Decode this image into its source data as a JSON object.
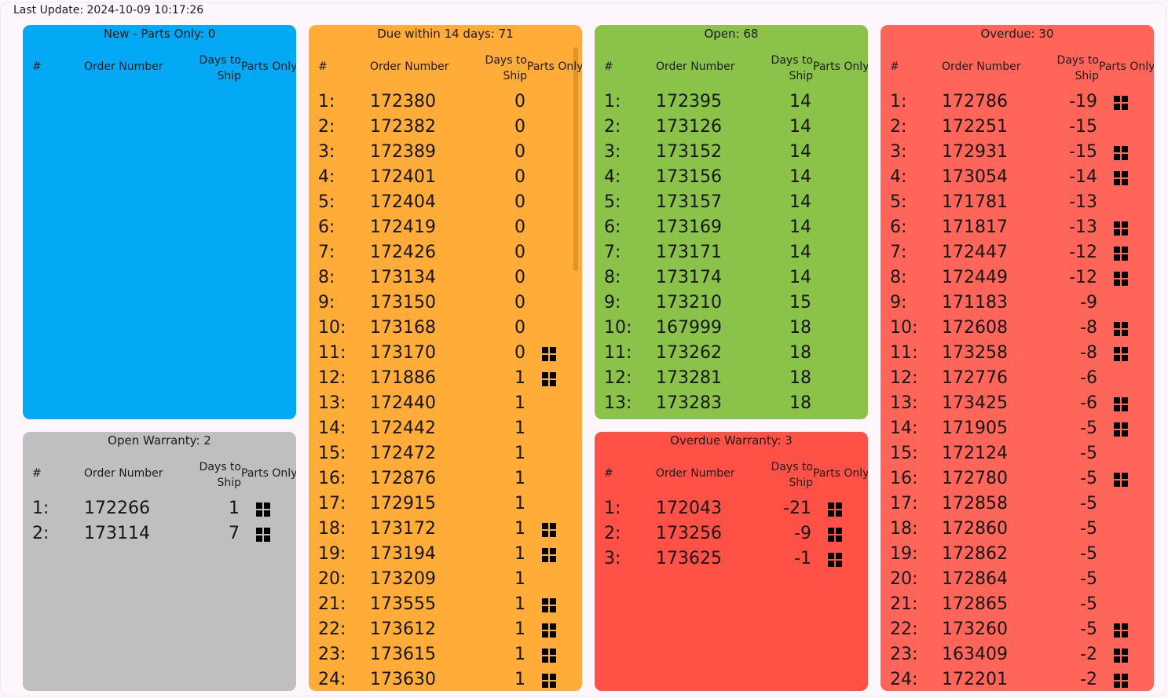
{
  "last_update": "Last Update: 2024-10-09 10:17:26",
  "columns": {
    "hash": "#",
    "order": "Order Number",
    "days": "Days to Ship",
    "parts": "Parts Only"
  },
  "colors": {
    "new": "#03a9f4",
    "due": "#ffac38",
    "open": "#8bc34a",
    "overdue": "#ff6659",
    "warranty": "#bfbfbf",
    "overdue_warranty": "#ff5145"
  },
  "panels": {
    "new": {
      "title": "New - Parts Only: 0",
      "rows": []
    },
    "warranty": {
      "title": "Open Warranty: 2",
      "rows": [
        {
          "idx": "1:",
          "order": "172266",
          "days": "1",
          "parts": true
        },
        {
          "idx": "2:",
          "order": "173114",
          "days": "7",
          "parts": true
        }
      ]
    },
    "due": {
      "title": "Due within 14 days: 71",
      "rows": [
        {
          "idx": "1:",
          "order": "172380",
          "days": "0",
          "parts": false
        },
        {
          "idx": "2:",
          "order": "172382",
          "days": "0",
          "parts": false
        },
        {
          "idx": "3:",
          "order": "172389",
          "days": "0",
          "parts": false
        },
        {
          "idx": "4:",
          "order": "172401",
          "days": "0",
          "parts": false
        },
        {
          "idx": "5:",
          "order": "172404",
          "days": "0",
          "parts": false
        },
        {
          "idx": "6:",
          "order": "172419",
          "days": "0",
          "parts": false
        },
        {
          "idx": "7:",
          "order": "172426",
          "days": "0",
          "parts": false
        },
        {
          "idx": "8:",
          "order": "173134",
          "days": "0",
          "parts": false
        },
        {
          "idx": "9:",
          "order": "173150",
          "days": "0",
          "parts": false
        },
        {
          "idx": "10:",
          "order": "173168",
          "days": "0",
          "parts": false
        },
        {
          "idx": "11:",
          "order": "173170",
          "days": "0",
          "parts": true
        },
        {
          "idx": "12:",
          "order": "171886",
          "days": "1",
          "parts": true
        },
        {
          "idx": "13:",
          "order": "172440",
          "days": "1",
          "parts": false
        },
        {
          "idx": "14:",
          "order": "172442",
          "days": "1",
          "parts": false
        },
        {
          "idx": "15:",
          "order": "172472",
          "days": "1",
          "parts": false
        },
        {
          "idx": "16:",
          "order": "172876",
          "days": "1",
          "parts": false
        },
        {
          "idx": "17:",
          "order": "172915",
          "days": "1",
          "parts": false
        },
        {
          "idx": "18:",
          "order": "173172",
          "days": "1",
          "parts": true
        },
        {
          "idx": "19:",
          "order": "173194",
          "days": "1",
          "parts": true
        },
        {
          "idx": "20:",
          "order": "173209",
          "days": "1",
          "parts": false
        },
        {
          "idx": "21:",
          "order": "173555",
          "days": "1",
          "parts": true
        },
        {
          "idx": "22:",
          "order": "173612",
          "days": "1",
          "parts": true
        },
        {
          "idx": "23:",
          "order": "173615",
          "days": "1",
          "parts": true
        },
        {
          "idx": "24:",
          "order": "173630",
          "days": "1",
          "parts": true
        }
      ]
    },
    "open": {
      "title": "Open: 68",
      "rows": [
        {
          "idx": "1:",
          "order": "172395",
          "days": "14",
          "parts": false
        },
        {
          "idx": "2:",
          "order": "173126",
          "days": "14",
          "parts": false
        },
        {
          "idx": "3:",
          "order": "173152",
          "days": "14",
          "parts": false
        },
        {
          "idx": "4:",
          "order": "173156",
          "days": "14",
          "parts": false
        },
        {
          "idx": "5:",
          "order": "173157",
          "days": "14",
          "parts": false
        },
        {
          "idx": "6:",
          "order": "173169",
          "days": "14",
          "parts": false
        },
        {
          "idx": "7:",
          "order": "173171",
          "days": "14",
          "parts": false
        },
        {
          "idx": "8:",
          "order": "173174",
          "days": "14",
          "parts": false
        },
        {
          "idx": "9:",
          "order": "173210",
          "days": "15",
          "parts": false
        },
        {
          "idx": "10:",
          "order": "167999",
          "days": "18",
          "parts": false
        },
        {
          "idx": "11:",
          "order": "173262",
          "days": "18",
          "parts": false
        },
        {
          "idx": "12:",
          "order": "173281",
          "days": "18",
          "parts": false
        },
        {
          "idx": "13:",
          "order": "173283",
          "days": "18",
          "parts": false
        }
      ]
    },
    "overdue_warranty": {
      "title": "Overdue Warranty: 3",
      "rows": [
        {
          "idx": "1:",
          "order": "172043",
          "days": "-21",
          "parts": true
        },
        {
          "idx": "2:",
          "order": "173256",
          "days": "-9",
          "parts": true
        },
        {
          "idx": "3:",
          "order": "173625",
          "days": "-1",
          "parts": true
        }
      ]
    },
    "overdue": {
      "title": "Overdue: 30",
      "rows": [
        {
          "idx": "1:",
          "order": "172786",
          "days": "-19",
          "parts": true
        },
        {
          "idx": "2:",
          "order": "172251",
          "days": "-15",
          "parts": false
        },
        {
          "idx": "3:",
          "order": "172931",
          "days": "-15",
          "parts": true
        },
        {
          "idx": "4:",
          "order": "173054",
          "days": "-14",
          "parts": true
        },
        {
          "idx": "5:",
          "order": "171781",
          "days": "-13",
          "parts": false
        },
        {
          "idx": "6:",
          "order": "171817",
          "days": "-13",
          "parts": true
        },
        {
          "idx": "7:",
          "order": "172447",
          "days": "-12",
          "parts": true
        },
        {
          "idx": "8:",
          "order": "172449",
          "days": "-12",
          "parts": true
        },
        {
          "idx": "9:",
          "order": "171183",
          "days": "-9",
          "parts": false
        },
        {
          "idx": "10:",
          "order": "172608",
          "days": "-8",
          "parts": true
        },
        {
          "idx": "11:",
          "order": "173258",
          "days": "-8",
          "parts": true
        },
        {
          "idx": "12:",
          "order": "172776",
          "days": "-6",
          "parts": false
        },
        {
          "idx": "13:",
          "order": "173425",
          "days": "-6",
          "parts": true
        },
        {
          "idx": "14:",
          "order": "171905",
          "days": "-5",
          "parts": true
        },
        {
          "idx": "15:",
          "order": "172124",
          "days": "-5",
          "parts": false
        },
        {
          "idx": "16:",
          "order": "172780",
          "days": "-5",
          "parts": true
        },
        {
          "idx": "17:",
          "order": "172858",
          "days": "-5",
          "parts": false
        },
        {
          "idx": "18:",
          "order": "172860",
          "days": "-5",
          "parts": false
        },
        {
          "idx": "19:",
          "order": "172862",
          "days": "-5",
          "parts": false
        },
        {
          "idx": "20:",
          "order": "172864",
          "days": "-5",
          "parts": false
        },
        {
          "idx": "21:",
          "order": "172865",
          "days": "-5",
          "parts": false
        },
        {
          "idx": "22:",
          "order": "173260",
          "days": "-5",
          "parts": true
        },
        {
          "idx": "23:",
          "order": "163409",
          "days": "-2",
          "parts": true
        },
        {
          "idx": "24:",
          "order": "172201",
          "days": "-2",
          "parts": true
        }
      ]
    }
  }
}
